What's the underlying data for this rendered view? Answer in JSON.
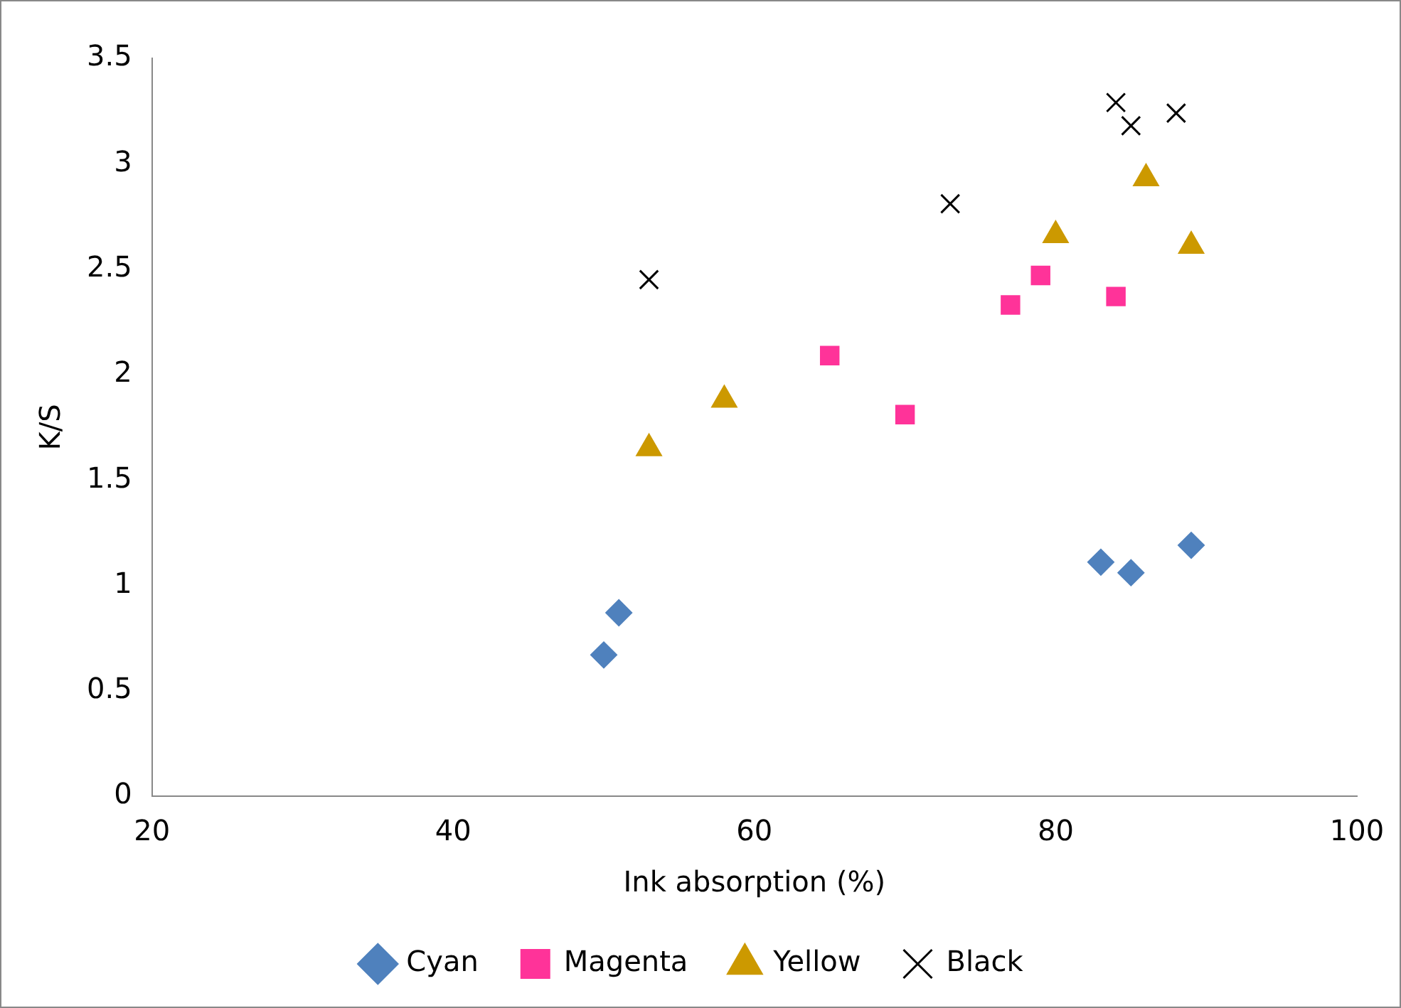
{
  "chart_data": {
    "type": "scatter",
    "xlabel": "Ink absorption (%)",
    "ylabel": "K/S",
    "xlim": [
      20,
      100
    ],
    "xticks": [
      20,
      40,
      60,
      80,
      100
    ],
    "ylim": [
      0,
      3.5
    ],
    "yticks": [
      0,
      0.5,
      {
        "value": 1,
        "label": "1"
      },
      1.5,
      {
        "value": 2,
        "label": "2"
      },
      2.5,
      {
        "value": 3,
        "label": "3"
      },
      3.5
    ],
    "grid": false,
    "legend": "bottom",
    "series": [
      {
        "name": "Cyan",
        "color": "#4f81bd",
        "marker": "diamond",
        "x": [
          50,
          51,
          83,
          85,
          89
        ],
        "values": [
          0.67,
          0.87,
          1.11,
          1.06,
          1.19
        ]
      },
      {
        "name": "Magenta",
        "color": "#ff3399",
        "marker": "square",
        "x": [
          65,
          70,
          77,
          79,
          84
        ],
        "values": [
          2.09,
          1.81,
          2.33,
          2.47,
          2.37
        ]
      },
      {
        "name": "Yellow",
        "color": "#cc9900",
        "marker": "triangle",
        "x": [
          53,
          58,
          80,
          86,
          89
        ],
        "values": [
          1.65,
          1.88,
          2.66,
          2.93,
          2.61
        ]
      },
      {
        "name": "Black",
        "color": "#000000",
        "marker": "cross",
        "x": [
          53,
          73,
          84,
          85,
          88
        ],
        "values": [
          2.45,
          2.81,
          3.29,
          3.18,
          3.24
        ]
      }
    ]
  }
}
